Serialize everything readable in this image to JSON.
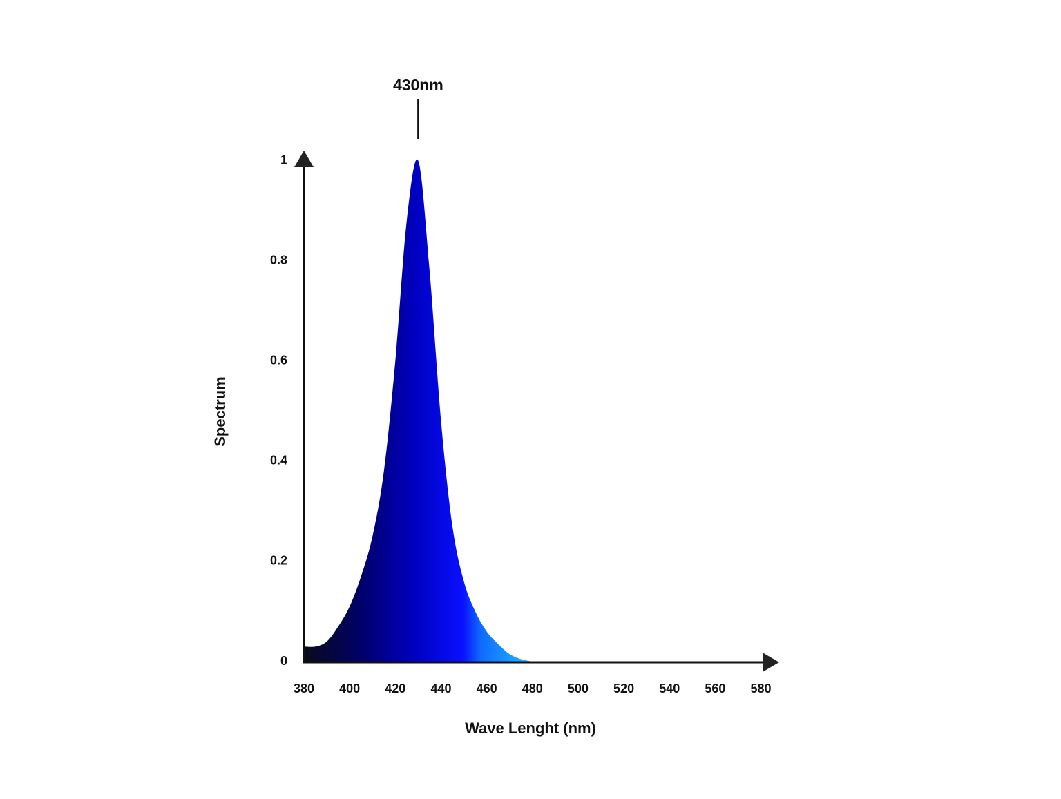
{
  "chart_data": {
    "type": "area",
    "x": [
      380,
      385,
      390,
      395,
      400,
      405,
      410,
      415,
      420,
      425,
      430,
      435,
      440,
      445,
      450,
      455,
      460,
      465,
      470,
      475,
      480
    ],
    "values": [
      0.03,
      0.03,
      0.04,
      0.07,
      0.11,
      0.17,
      0.25,
      0.38,
      0.6,
      0.88,
      1.0,
      0.78,
      0.48,
      0.27,
      0.16,
      0.1,
      0.06,
      0.035,
      0.015,
      0.005,
      0
    ],
    "xlim": [
      380,
      588
    ],
    "ylim": [
      0,
      1.02
    ],
    "xticks": [
      380,
      400,
      420,
      440,
      460,
      480,
      500,
      520,
      540,
      560,
      580
    ],
    "yticks": [
      0,
      0.2,
      0.4,
      0.6,
      0.8,
      1
    ],
    "xlabel": "Wave Lenght (nm)",
    "ylabel": "Spectrum",
    "annotation": {
      "text": "430nm",
      "x": 430
    },
    "grid": false
  }
}
